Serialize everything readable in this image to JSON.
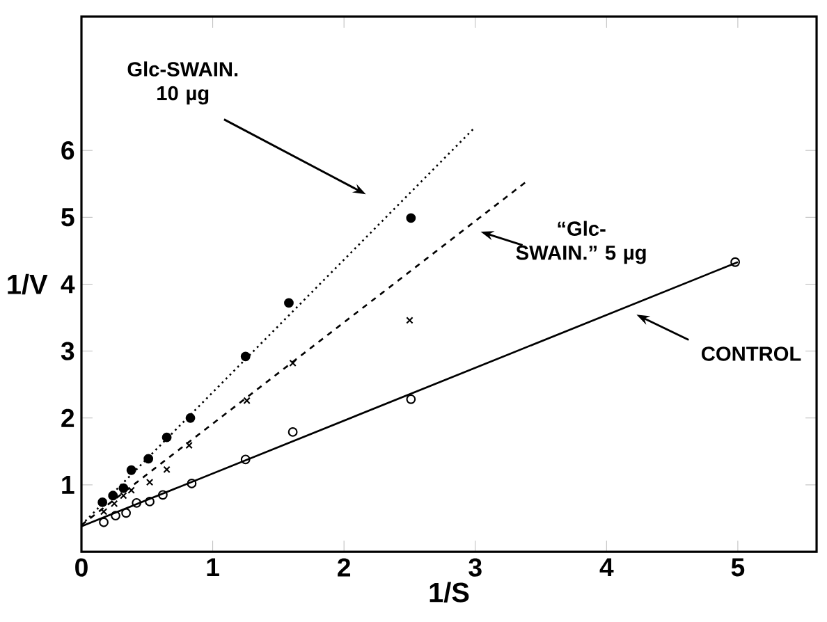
{
  "chart_data": {
    "type": "scatter",
    "xlabel": "1/S",
    "ylabel": "1/V",
    "xlim": [
      0,
      5.6
    ],
    "ylim": [
      0,
      8
    ],
    "xticks": [
      0,
      1,
      2,
      3,
      4,
      5
    ],
    "yticks": [
      1,
      2,
      3,
      4,
      5,
      6
    ],
    "series": [
      {
        "color": "#000000",
        "marker": "circle",
        "x": [
          0.17,
          0.26,
          0.34,
          0.42,
          0.52,
          0.62,
          0.84,
          1.25,
          1.61,
          2.51,
          4.98
        ],
        "values": [
          0.44,
          0.54,
          0.58,
          0.73,
          0.75,
          0.85,
          1.02,
          1.38,
          1.79,
          2.28,
          4.33
        ]
      },
      {
        "color": "#000000",
        "marker": "cross",
        "x": [
          0.17,
          0.25,
          0.32,
          0.38,
          0.52,
          0.65,
          0.82,
          1.26,
          1.61,
          2.5
        ],
        "values": [
          0.6,
          0.72,
          0.84,
          0.92,
          1.04,
          1.23,
          1.59,
          2.26,
          2.82,
          3.46
        ]
      },
      {
        "color": "#000000",
        "marker": "dot",
        "x": [
          0.16,
          0.24,
          0.32,
          0.38,
          0.51,
          0.65,
          0.83,
          1.25,
          1.58,
          2.51
        ],
        "values": [
          0.74,
          0.84,
          0.95,
          1.22,
          1.39,
          1.71,
          2.0,
          2.92,
          3.72,
          4.99
        ]
      },
      {
        "type": "line",
        "color": "#000000",
        "line_style": "solid",
        "x": [
          0,
          5
        ],
        "values": [
          0.38,
          4.33
        ]
      },
      {
        "type": "line",
        "color": "#000000",
        "line_style": "dashed",
        "x": [
          0,
          3.4
        ],
        "values": [
          0.4,
          5.55
        ]
      },
      {
        "type": "line",
        "color": "#000000",
        "line_style": "dotted",
        "x": [
          0,
          3.0
        ],
        "values": [
          0.4,
          6.35
        ]
      }
    ],
    "annotations": [
      "Glc-SWAIN. 10 µg",
      "“Glc-SWAIN.” 5 µg",
      "CONTROL"
    ]
  }
}
